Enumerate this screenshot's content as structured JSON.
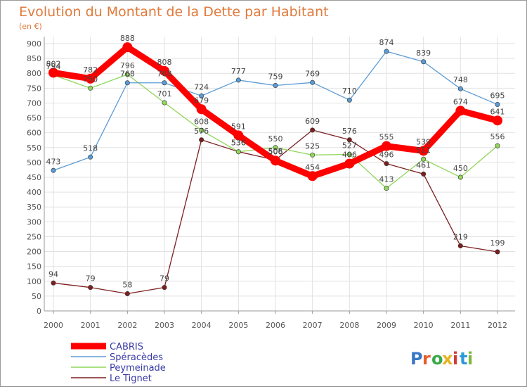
{
  "chart_data": {
    "type": "line",
    "title": "Evolution du Montant de la Dette par Habitant",
    "subtitle": "(en €)",
    "x": [
      "2000",
      "2001",
      "2002",
      "2003",
      "2004",
      "2005",
      "2006",
      "2007",
      "2008",
      "2009",
      "2010",
      "2011",
      "2012"
    ],
    "ylim": [
      0,
      900
    ],
    "yticks": [
      0,
      50,
      100,
      150,
      200,
      250,
      300,
      350,
      400,
      450,
      500,
      550,
      600,
      650,
      700,
      750,
      800,
      850,
      900
    ],
    "grid": true,
    "legend_position": "bottom-left",
    "series": [
      {
        "name": "CABRIS",
        "color": "#ff0000",
        "values": [
          802,
          782,
          888,
          808,
          679,
          591,
          506,
          454,
          496,
          555,
          539,
          674,
          641
        ]
      },
      {
        "name": "Spéracèdes",
        "color": "#5b9bd5",
        "values": [
          473,
          518,
          768,
          768,
          724,
          777,
          759,
          769,
          710,
          874,
          839,
          748,
          695
        ]
      },
      {
        "name": "Peymeinade",
        "color": "#8fd65a",
        "values": [
          794,
          750,
          796,
          701,
          608,
          536,
          550,
          525,
          527,
          413,
          511,
          450,
          556
        ]
      },
      {
        "name": "Le Tignet",
        "color": "#7b1f1f",
        "values": [
          94,
          79,
          58,
          79,
          576,
          536,
          508,
          609,
          576,
          496,
          461,
          219,
          199
        ]
      }
    ],
    "data_labels": [
      [
        "802",
        "782",
        "888",
        "808",
        "679",
        "591",
        "506",
        "454",
        "496",
        "555",
        "539",
        "674",
        "641"
      ],
      [
        "473",
        "518",
        "768",
        "768",
        "724",
        "777",
        "759",
        "769",
        "710",
        "874",
        "839",
        "748",
        "695"
      ],
      [
        "794",
        "750",
        "796",
        "701",
        "608",
        "536",
        "550",
        "525",
        "527",
        "413",
        "511",
        "450",
        "556"
      ],
      [
        "94",
        "79",
        "58",
        "79",
        "576",
        "536",
        "508",
        "609",
        "576",
        "496",
        "461",
        "219",
        "199"
      ]
    ],
    "colors": {
      "grid": "#e2e2e2",
      "axis": "#9a9a9a",
      "text": "#555555",
      "title": "#e07a3c",
      "legend_text": "#3a3aa8"
    }
  },
  "branding": {
    "logo_text": "Proxiti"
  }
}
